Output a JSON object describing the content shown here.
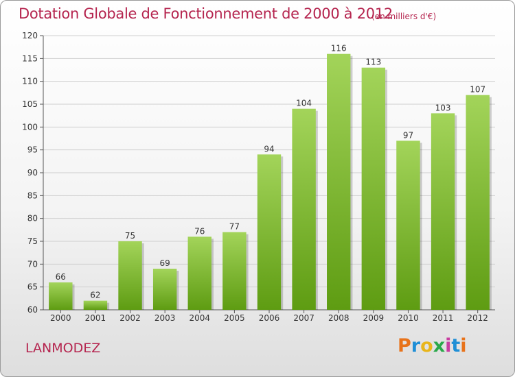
{
  "header": {
    "title": "Dotation Globale de Fonctionnement de 2000 à 2012",
    "unit": "(en milliers d'€)"
  },
  "commune": "LANMODEZ",
  "logo": {
    "text": "Proxiti",
    "colors": [
      "#e8731b",
      "#1f8fd6",
      "#e8b51b",
      "#2aa84a",
      "#c83ca0",
      "#1f8fd6",
      "#e8731b"
    ]
  },
  "colors": {
    "bar_top": "#a3d45a",
    "bar_bottom": "#5e9c12",
    "title": "#b5254f",
    "grid": "#cfcfcf"
  },
  "chart_data": {
    "type": "bar",
    "title": "Dotation Globale de Fonctionnement de 2000 à 2012",
    "subtitle": "(en milliers d'€)",
    "categories": [
      "2000",
      "2001",
      "2002",
      "2003",
      "2004",
      "2005",
      "2006",
      "2007",
      "2008",
      "2009",
      "2010",
      "2011",
      "2012"
    ],
    "values": [
      66,
      62,
      75,
      69,
      76,
      77,
      94,
      104,
      116,
      113,
      97,
      103,
      107
    ],
    "ylim": [
      60,
      120
    ],
    "yticks": [
      60,
      65,
      70,
      75,
      80,
      85,
      90,
      95,
      100,
      105,
      110,
      115,
      120
    ],
    "grid": true,
    "legend": "none"
  }
}
